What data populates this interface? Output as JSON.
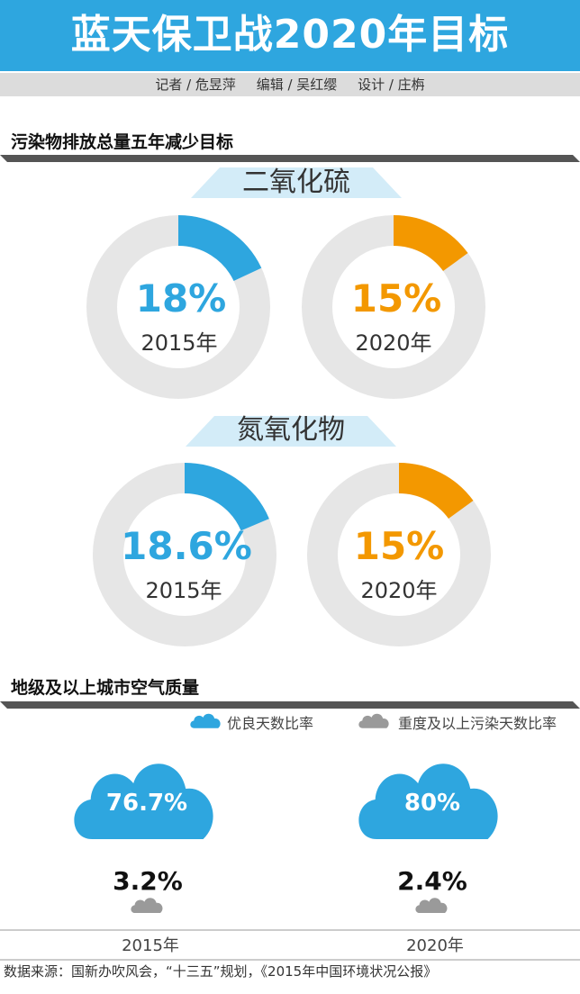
{
  "header": {
    "title": "蓝天保卫战2020年目标",
    "credits": [
      "记者 / 危昱萍",
      "编辑 / 吴红缨",
      "设计 / 庄栴"
    ]
  },
  "section1": {
    "title": "污染物排放总量五年减少目标",
    "groups": [
      {
        "label": "二氧化硫",
        "items": [
          {
            "year": "2015年",
            "value_label": "18%",
            "value": 18,
            "color": "#2ea6df"
          },
          {
            "year": "2020年",
            "value_label": "15%",
            "value": 15,
            "color": "#f39800"
          }
        ]
      },
      {
        "label": "氮氧化物",
        "items": [
          {
            "year": "2015年",
            "value_label": "18.6%",
            "value": 18.6,
            "color": "#2ea6df"
          },
          {
            "year": "2020年",
            "value_label": "15%",
            "value": 15,
            "color": "#f39800"
          }
        ]
      }
    ]
  },
  "section2": {
    "title": "地级及以上城市空气质量",
    "legend": [
      {
        "label": "优良天数比率",
        "color": "#2ea6df",
        "icon": "cloud-icon"
      },
      {
        "label": "重度及以上污染天数比率",
        "color": "#9a9a9a",
        "icon": "cloud-icon"
      }
    ],
    "columns": [
      {
        "year": "2015年",
        "good_label": "76.7%",
        "polluted_label": "3.2%"
      },
      {
        "year": "2020年",
        "good_label": "80%",
        "polluted_label": "2.4%"
      }
    ]
  },
  "source": "数据来源：国新办吹风会，“十三五”规划，《2015年中国环境状况公报》",
  "chart_data": [
    {
      "type": "pie",
      "title": "二氧化硫",
      "categories": [
        "2015年",
        "2020年"
      ],
      "values": [
        18,
        15
      ],
      "unit": "%"
    },
    {
      "type": "pie",
      "title": "氮氧化物",
      "categories": [
        "2015年",
        "2020年"
      ],
      "values": [
        18.6,
        15
      ],
      "unit": "%"
    },
    {
      "type": "bar",
      "title": "地级及以上城市空气质量",
      "categories": [
        "2015年",
        "2020年"
      ],
      "series": [
        {
          "name": "优良天数比率",
          "values": [
            76.7,
            80
          ]
        },
        {
          "name": "重度及以上污染天数比率",
          "values": [
            3.2,
            2.4
          ]
        }
      ],
      "unit": "%"
    }
  ]
}
